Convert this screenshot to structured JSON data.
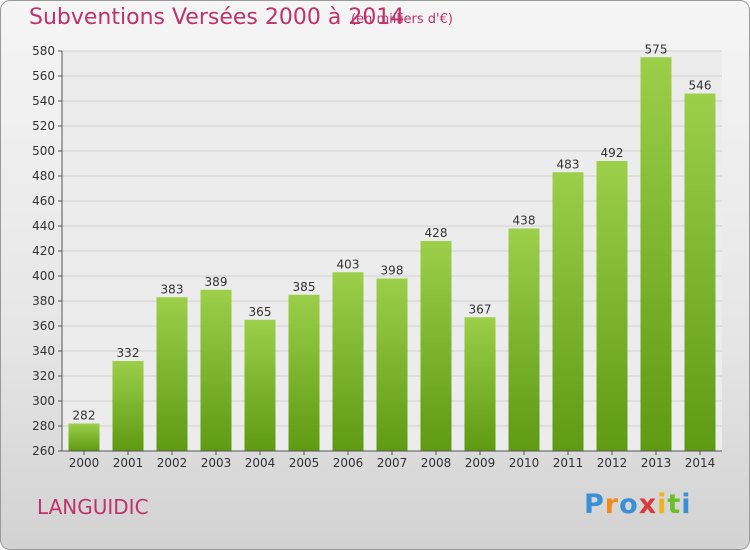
{
  "title": "Subventions Versées 2000 à 2014",
  "subtitle": "(en milliers d'€)",
  "commune": "LANGUIDIC",
  "logo": {
    "letters": [
      "P",
      "r",
      "o",
      "x",
      "i",
      "t",
      "i"
    ],
    "colors": [
      "#3a8fd6",
      "#f28a1a",
      "#3a8fd6",
      "#d93a3a",
      "#f2b21a",
      "#6abf2a",
      "#3a8fd6"
    ]
  },
  "colors": {
    "accent": "#c0326a",
    "bar_light": "#9ccf4a",
    "bar_dark": "#5e9a12"
  },
  "chart_data": {
    "type": "bar",
    "categories": [
      "2000",
      "2001",
      "2002",
      "2003",
      "2004",
      "2005",
      "2006",
      "2007",
      "2008",
      "2009",
      "2010",
      "2011",
      "2012",
      "2013",
      "2014"
    ],
    "values": [
      282,
      332,
      383,
      389,
      365,
      385,
      403,
      398,
      428,
      367,
      438,
      483,
      492,
      575,
      546
    ],
    "ylim": [
      260,
      580
    ],
    "yticks": [
      260,
      280,
      300,
      320,
      340,
      360,
      380,
      400,
      420,
      440,
      460,
      480,
      500,
      520,
      540,
      560,
      580
    ],
    "grid": true
  }
}
